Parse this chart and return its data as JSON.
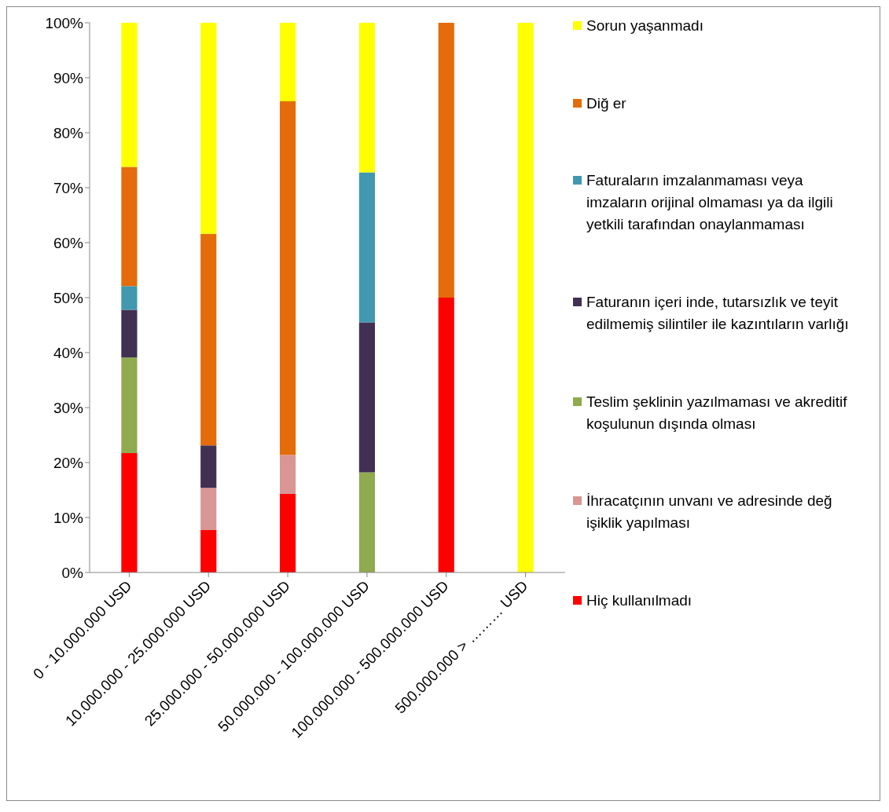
{
  "chart_data": {
    "type": "bar",
    "stacked": true,
    "legend": "right",
    "grid": false,
    "categories": [
      "0 - 10.000.000 USD",
      "10.000.000 - 25.000.000 USD",
      "25.000.000 - 50.000.000 USD",
      "50.000.000 - 100.000.000 USD",
      "100.000.000 - 500.000.000 USD",
      "500.000.000 > ……… USD"
    ],
    "series": [
      {
        "name": "Hiç kullanılmadı",
        "color": "#ff0000",
        "values": [
          21.7,
          7.7,
          14.3,
          null,
          50,
          null
        ]
      },
      {
        "name": "İhracatçının unvanı ve adresinde değ işiklik yapılması",
        "color": "#d99694",
        "values": [
          null,
          7.7,
          7.1,
          null,
          null,
          null
        ]
      },
      {
        "name": "Teslim şeklinin yazılmaması ve akreditif koşulunun dışında olması",
        "color": "#8faa4f",
        "values": [
          17.4,
          null,
          null,
          18.2,
          null,
          null
        ]
      },
      {
        "name": "Faturanın içeri inde, tutarsızlık ve teyit edilmemiş silintiler ile kazıntıların varlığı",
        "color": "#403152",
        "values": [
          8.7,
          7.7,
          null,
          27.3,
          null,
          null
        ]
      },
      {
        "name": "Faturaların imzalanmaması veya imzaların orijinal olmaması ya da ilgili yetkili tarafından onaylanmaması",
        "color": "#4198af",
        "values": [
          4.3,
          null,
          null,
          27.3,
          null,
          null
        ]
      },
      {
        "name": "Diğ er",
        "color": "#e46c0a",
        "values": [
          21.7,
          38.5,
          64.3,
          null,
          50,
          null
        ]
      },
      {
        "name": "Sorun yaşanmadı",
        "color": "#ffff00",
        "values": [
          26.2,
          38.4,
          14.3,
          27.2,
          null,
          100
        ]
      }
    ],
    "ylim": [
      0,
      100
    ],
    "yticks": [
      {
        "value": 0,
        "label": "0%"
      },
      {
        "value": 10,
        "label": "10%"
      },
      {
        "value": 20,
        "label": "20%"
      },
      {
        "value": 30,
        "label": "30%"
      },
      {
        "value": 40,
        "label": "40%"
      },
      {
        "value": 50,
        "label": "50%"
      },
      {
        "value": 60,
        "label": "60%"
      },
      {
        "value": 70,
        "label": "70%"
      },
      {
        "value": 80,
        "label": "80%"
      },
      {
        "value": 90,
        "label": "90%"
      },
      {
        "value": 100,
        "label": "100%"
      }
    ]
  }
}
